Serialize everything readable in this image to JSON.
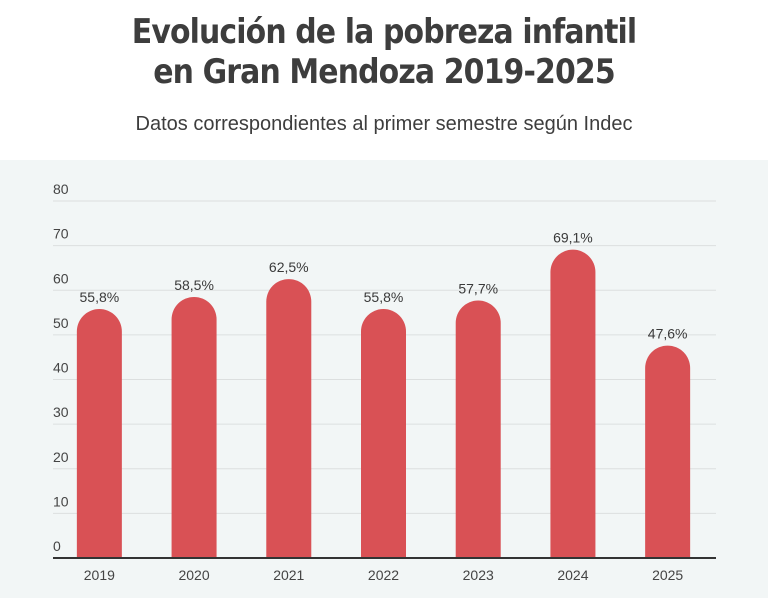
{
  "header": {
    "title_line1": "Evolución de la pobreza infantil",
    "title_line2": "en Gran Mendoza 2019-2025",
    "subtitle": "Datos correspondientes al primer semestre según Indec"
  },
  "chart_data": {
    "type": "bar",
    "title": "Evolución de la pobreza infantil en Gran Mendoza 2019-2025",
    "subtitle": "Datos correspondientes al primer semestre según Indec",
    "xlabel": "",
    "ylabel": "",
    "categories": [
      "2019",
      "2020",
      "2021",
      "2022",
      "2023",
      "2024",
      "2025"
    ],
    "values": [
      55.8,
      58.5,
      62.5,
      55.8,
      57.7,
      69.1,
      47.6
    ],
    "data_labels": [
      "55,8%",
      "58,5%",
      "62,5%",
      "55,8%",
      "57,7%",
      "69,1%",
      "47,6%"
    ],
    "ylim": [
      0,
      80
    ],
    "yticks": [
      0,
      10,
      20,
      30,
      40,
      50,
      60,
      70,
      80
    ],
    "grid": true,
    "legend": "none",
    "bar_color": "#d95155"
  }
}
